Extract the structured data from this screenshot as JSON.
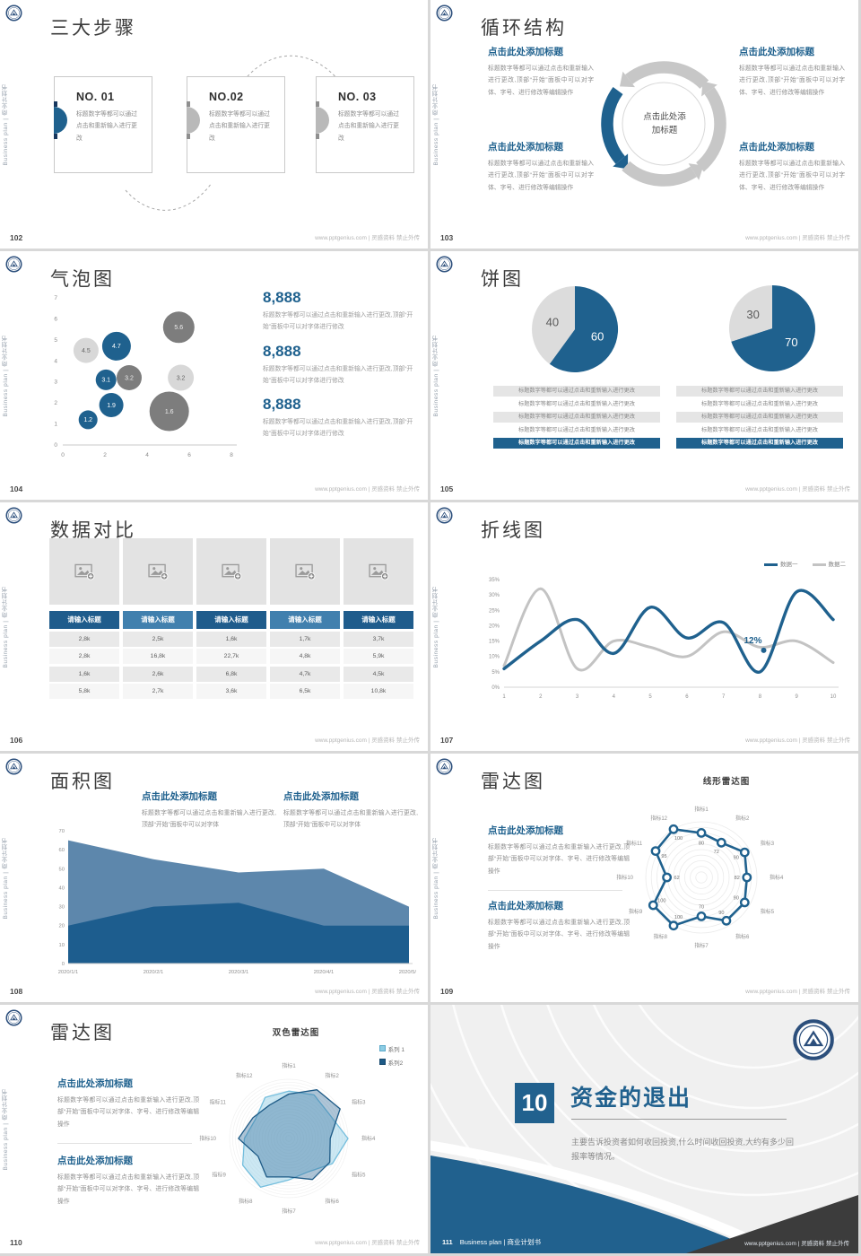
{
  "common": {
    "sidebar_text": "Business plan | 商业计划书",
    "footer_text": "www.pptgenius.com | 灵感资料 禁止外传",
    "colors": {
      "primary": "#1f618e",
      "dark_gray_series": "#7d7d7d",
      "light_gray_series": "#d8d8d8",
      "table_header_dark": "#1f5c8c",
      "table_header_light": "#4180ae",
      "cover_dark_corner": "#3c3c3c"
    }
  },
  "slides": {
    "s102": {
      "page": "102",
      "title": "三大步骤",
      "cards": [
        {
          "no": "NO. 01",
          "body": "标题数字等都可以通过点击和重新输入进行更改"
        },
        {
          "no": "NO.02",
          "body": "标题数字等都可以通过点击和重新输入进行更改"
        },
        {
          "no": "NO. 03",
          "body": "标题数字等都可以通过点击和重新输入进行更改"
        }
      ]
    },
    "s103": {
      "page": "103",
      "title": "循环结构",
      "center_label": "点击此处添加标题",
      "blocks": [
        {
          "heading": "点击此处添加标题",
          "body": "标题数字等都可以通过点击和重新输入进行更改,顶部“开始”面板中可以对字体、字号、进行修改等编辑操作"
        },
        {
          "heading": "点击此处添加标题",
          "body": "标题数字等都可以通过点击和重新输入进行更改,顶部“开始”面板中可以对字体、字号、进行修改等编辑操作"
        },
        {
          "heading": "点击此处添加标题",
          "body": "标题数字等都可以通过点击和重新输入进行更改,顶部“开始”面板中可以对字体、字号、进行修改等编辑操作"
        },
        {
          "heading": "点击此处添加标题",
          "body": "标题数字等都可以通过点击和重新输入进行更改,顶部“开始”面板中可以对字体、字号、进行修改等编辑操作"
        }
      ]
    },
    "s104": {
      "page": "104",
      "title": "气泡图",
      "stats": [
        {
          "value": "8,888",
          "body": "标题数字等都可以通过点击和重新输入进行更改,顶部“开始”面板中可以对字体进行修改"
        },
        {
          "value": "8,888",
          "body": "标题数字等都可以通过点击和重新输入进行更改,顶部“开始”面板中可以对字体进行修改"
        },
        {
          "value": "8,888",
          "body": "标题数字等都可以通过点击和重新输入进行更改,顶部“开始”面板中可以对字体进行修改"
        }
      ]
    },
    "s105": {
      "page": "105",
      "title": "饼图",
      "row_text": "标题数字等都可以通过点击和重新输入进行更改",
      "row_styles": [
        "shaded",
        "plain",
        "shaded",
        "plain",
        "accent"
      ]
    },
    "s106": {
      "page": "106",
      "title": "数据对比"
    },
    "s107": {
      "page": "107",
      "title": "折线图"
    },
    "s108": {
      "page": "108",
      "title": "面积图",
      "blocks": [
        {
          "heading": "点击此处添加标题",
          "body": "标题数字等都可以通过点击和重新输入进行更改,顶部“开始”面板中可以对字体"
        },
        {
          "heading": "点击此处添加标题",
          "body": "标题数字等都可以通过点击和重新输入进行更改,顶部“开始”面板中可以对字体"
        }
      ]
    },
    "s109": {
      "page": "109",
      "title": "雷达图",
      "chart_title": "线形雷达图",
      "blocks": [
        {
          "heading": "点击此处添加标题",
          "body": "标题数字等都可以通过点击和重新输入进行更改,顶部“开始”面板中可以对字体、字号、进行修改等编辑操作"
        },
        {
          "heading": "点击此处添加标题",
          "body": "标题数字等都可以通过点击和重新输入进行更改,顶部“开始”面板中可以对字体、字号、进行修改等编辑操作"
        }
      ]
    },
    "s110": {
      "page": "110",
      "title": "雷达图",
      "chart_title": "双色雷达图",
      "blocks": [
        {
          "heading": "点击此处添加标题",
          "body": "标题数字等都可以通过点击和重新输入进行更改,顶部“开始”面板中可以对字体、字号、进行修改等编辑操作"
        },
        {
          "heading": "点击此处添加标题",
          "body": "标题数字等都可以通过点击和重新输入进行更改,顶部“开始”面板中可以对字体、字号、进行修改等编辑操作"
        }
      ]
    },
    "s111": {
      "page": "111",
      "chapter_number": "10",
      "title": "资金的退出",
      "body": "主要告诉投资者如何收回投资,什么时间收回投资,大约有多少回报率等情况。",
      "footer_left": "Business plan | 商业计划书"
    }
  },
  "chart_data": [
    {
      "id": "bubble-chart",
      "type": "scatter",
      "slide": "104",
      "xlim": [
        0,
        8
      ],
      "ylim": [
        0,
        7
      ],
      "xticks": [
        0,
        2,
        4,
        6,
        8
      ],
      "yticks": [
        0,
        1,
        2,
        3,
        4,
        5,
        6,
        7
      ],
      "points": [
        {
          "x": 1.1,
          "y": 4.5,
          "r": 14,
          "label": "4.5",
          "color": "lightgray"
        },
        {
          "x": 2.55,
          "y": 4.7,
          "r": 16,
          "label": "4.7",
          "color": "blue"
        },
        {
          "x": 5.5,
          "y": 5.6,
          "r": 17.5,
          "label": "5.6",
          "color": "darkgray"
        },
        {
          "x": 3.15,
          "y": 3.2,
          "r": 14,
          "label": "3.2",
          "color": "darkgray"
        },
        {
          "x": 2.05,
          "y": 3.1,
          "r": 11.5,
          "label": "3.1",
          "color": "blue"
        },
        {
          "x": 5.6,
          "y": 3.2,
          "r": 14.5,
          "label": "3.2",
          "color": "lightgray"
        },
        {
          "x": 5.05,
          "y": 1.6,
          "r": 22,
          "label": "1.6",
          "color": "darkgray"
        },
        {
          "x": 2.3,
          "y": 1.9,
          "r": 13.5,
          "label": "1.9",
          "color": "blue"
        },
        {
          "x": 1.2,
          "y": 1.2,
          "r": 10.5,
          "label": "1.2",
          "color": "blue"
        }
      ]
    },
    {
      "id": "pie-chart-left",
      "type": "pie",
      "slide": "105",
      "slices": [
        {
          "label": "60",
          "value": 60,
          "color": "#1f618e",
          "label_color": "#ffffff"
        },
        {
          "label": "40",
          "value": 40,
          "color": "#dcdcdc",
          "label_color": "#5a5a5a"
        }
      ]
    },
    {
      "id": "pie-chart-right",
      "type": "pie",
      "slide": "105",
      "slices": [
        {
          "label": "70",
          "value": 70,
          "color": "#1f618e",
          "label_color": "#ffffff"
        },
        {
          "label": "30",
          "value": 30,
          "color": "#dcdcdc",
          "label_color": "#5a5a5a"
        }
      ]
    },
    {
      "id": "comparison-table",
      "type": "table",
      "slide": "106",
      "headers": [
        "请输入标题",
        "请输入标题",
        "请输入标题",
        "请输入标题",
        "请输入标题"
      ],
      "rows": [
        [
          "2,8k",
          "2,5k",
          "1,6k",
          "1,7k",
          "3,7k"
        ],
        [
          "2,8k",
          "16,8k",
          "22,7k",
          "4,8k",
          "5,9k"
        ],
        [
          "1,6k",
          "2,6k",
          "6,8k",
          "4,7k",
          "4,5k"
        ],
        [
          "5,8k",
          "2,7k",
          "3,6k",
          "6,5k",
          "10,8k"
        ]
      ]
    },
    {
      "id": "line-chart",
      "type": "line",
      "slide": "107",
      "x": [
        1,
        2,
        3,
        4,
        5,
        6,
        7,
        8,
        9,
        10
      ],
      "ylim": [
        0,
        35
      ],
      "ytick_step": 5,
      "legend_position": "top-right",
      "series": [
        {
          "name": "数据一",
          "color": "#1f618e",
          "values": [
            6,
            15,
            22,
            11,
            26,
            16,
            21,
            5,
            31,
            22
          ]
        },
        {
          "name": "数据二",
          "color": "#c3c3c3",
          "values": [
            7,
            32,
            6,
            15,
            13,
            10,
            18,
            13,
            15,
            8
          ]
        }
      ],
      "annotation": {
        "x": 8.1,
        "y": 12,
        "label": "12%"
      }
    },
    {
      "id": "area-chart",
      "type": "area",
      "slide": "108",
      "x": [
        "2020/1/1",
        "2020/2/1",
        "2020/3/1",
        "2020/4/1",
        "2020/5/1"
      ],
      "ylim": [
        0,
        70
      ],
      "ytick_step": 10,
      "series": [
        {
          "color": "#5d87ac",
          "values": [
            65,
            55,
            48,
            50,
            30
          ]
        },
        {
          "color": "#1d5d8e",
          "values": [
            20,
            30,
            32,
            20,
            20
          ]
        }
      ]
    },
    {
      "id": "radar-line-chart",
      "type": "radar",
      "slide": "109",
      "subtitle": "线形雷达图",
      "max": 100,
      "categories": [
        "指标1",
        "指标2",
        "指标3",
        "指标4",
        "指标5",
        "指标6",
        "指标7",
        "指标8",
        "指标9",
        "指标10",
        "指标11",
        "指标12"
      ],
      "values": [
        80,
        72,
        90,
        82,
        90,
        90,
        70,
        100,
        100,
        62,
        95,
        100
      ],
      "color": "#1f618e"
    },
    {
      "id": "radar-dual-chart",
      "type": "radar",
      "slide": "110",
      "subtitle": "双色雷达图",
      "max": 100,
      "categories": [
        "指标1",
        "指标2",
        "指标3",
        "指标4",
        "指标5",
        "指标6",
        "指标7",
        "指标8",
        "指标9",
        "指标10",
        "指标11",
        "指标12"
      ],
      "series": [
        {
          "name": "系列 1",
          "color": "#74bedd",
          "fill": "rgba(141,205,228,0.45)",
          "values": [
            80,
            85,
            80,
            100,
            85,
            65,
            70,
            95,
            90,
            75,
            65,
            80
          ]
        },
        {
          "name": "系列2",
          "color": "#1d5a86",
          "fill": "rgba(52,110,156,0.40)",
          "values": [
            75,
            95,
            100,
            70,
            80,
            80,
            65,
            75,
            60,
            85,
            70,
            65
          ]
        }
      ]
    }
  ]
}
